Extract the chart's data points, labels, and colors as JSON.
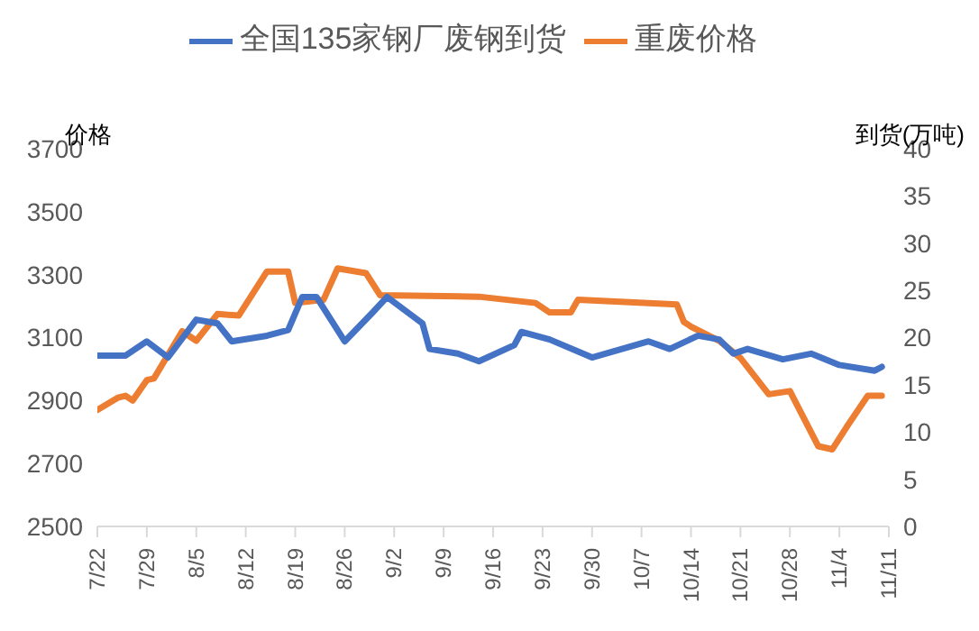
{
  "chart_data": {
    "type": "line",
    "ylabel": "价格",
    "y2label": "到货(万吨)",
    "legend": "top",
    "grid": false,
    "marker": "none",
    "line_style": "solid",
    "xlim": [
      "--07-22",
      "--11-11"
    ],
    "xticks": [
      {
        "value": "--07-22",
        "label": "7/22"
      },
      {
        "value": "--07-29",
        "label": "7/29"
      },
      {
        "value": "--08-05",
        "label": "8/5"
      },
      {
        "value": "--08-12",
        "label": "8/12"
      },
      {
        "value": "--08-19",
        "label": "8/19"
      },
      {
        "value": "--08-26",
        "label": "8/26"
      },
      {
        "value": "--09-02",
        "label": "9/2"
      },
      {
        "value": "--09-09",
        "label": "9/9"
      },
      {
        "value": "--09-16",
        "label": "9/16"
      },
      {
        "value": "--09-23",
        "label": "9/23"
      },
      {
        "value": "--09-30",
        "label": "9/30"
      },
      {
        "value": "--10-07",
        "label": "10/7"
      },
      {
        "value": "--10-14",
        "label": "10/14"
      },
      {
        "value": "--10-21",
        "label": "10/21"
      },
      {
        "value": "--10-28",
        "label": "10/28"
      },
      {
        "value": "--11-04",
        "label": "11/4"
      },
      {
        "value": "--11-11",
        "label": "11/11"
      }
    ],
    "ylim": [
      2500,
      3700
    ],
    "yticks": [
      2500,
      2700,
      2900,
      3100,
      3300,
      3500,
      3700
    ],
    "y2lim": [
      0,
      40
    ],
    "y2ticks": [
      0,
      5,
      10,
      15,
      20,
      25,
      30,
      35,
      40
    ],
    "series": [
      {
        "name": "重废价格",
        "color": "#ed7d31",
        "x": [
          "--07-22",
          "--07-25",
          "--07-26",
          "--07-27",
          "--07-29",
          "--07-30",
          "--08-03",
          "--08-05",
          "--08-08",
          "--08-11",
          "--08-15",
          "--08-18",
          "--08-19",
          "--08-23",
          "--08-25",
          "--08-29",
          "--08-31",
          "--09-14",
          "--09-22",
          "--09-24",
          "--09-27",
          "--09-28",
          "--10-12",
          "--10-13",
          "--10-14",
          "--10-18",
          "--10-21",
          "--10-25",
          "--10-28",
          "--11-01",
          "--11-03",
          "--11-05",
          "--11-08",
          "--11-10"
        ],
        "values": [
          2870,
          2910,
          2915,
          2900,
          2965,
          2970,
          3120,
          3090,
          3175,
          3170,
          3310,
          3310,
          3210,
          3220,
          3320,
          3305,
          3235,
          3230,
          3210,
          3180,
          3180,
          3220,
          3205,
          3150,
          3135,
          3090,
          3035,
          2920,
          2930,
          2755,
          2745,
          2815,
          2915,
          2915
        ]
      },
      {
        "name": "全国135家钢厂废钢到货",
        "color": "#4472c4",
        "axis": "y2",
        "x": [
          "--07-22",
          "--07-26",
          "--07-29",
          "--08-01",
          "--08-05",
          "--08-08",
          "--08-10",
          "--08-15",
          "--08-18",
          "--08-20",
          "--08-22",
          "--08-26",
          "--08-30",
          "--09-01",
          "--09-06",
          "--09-07",
          "--09-11",
          "--09-14",
          "--09-19",
          "--09-20",
          "--09-24",
          "--09-30",
          "--10-08",
          "--10-11",
          "--10-15",
          "--10-18",
          "--10-20",
          "--10-22",
          "--10-27",
          "--10-31",
          "--11-04",
          "--11-09",
          "--11-10"
        ],
        "values": [
          18.1,
          18.1,
          19.6,
          17.9,
          21.9,
          21.5,
          19.6,
          20.2,
          20.8,
          24.3,
          24.3,
          19.6,
          22.7,
          24.3,
          21.5,
          18.8,
          18.3,
          17.5,
          19.2,
          20.6,
          19.8,
          17.9,
          19.6,
          18.8,
          20.2,
          19.8,
          18.3,
          18.8,
          17.7,
          18.3,
          17.1,
          16.5,
          16.9
        ]
      }
    ]
  }
}
